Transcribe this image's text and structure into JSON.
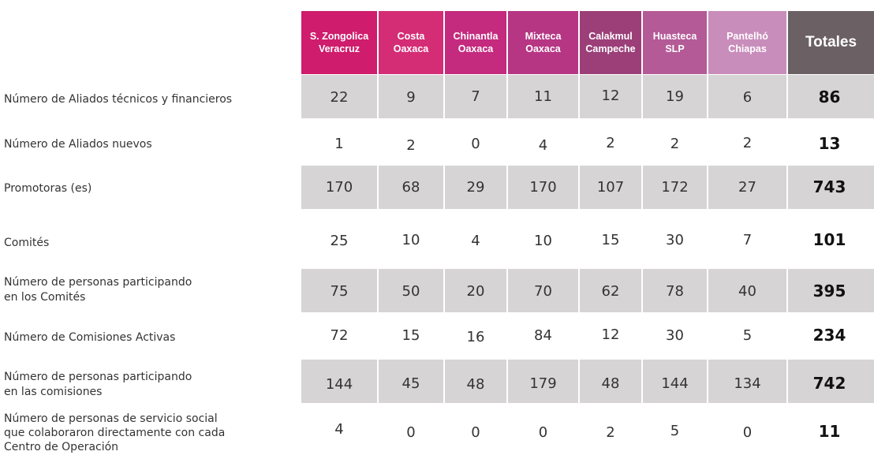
{
  "header": {
    "columns": [
      {
        "line1": "S. Zongolica",
        "line2": "Veracruz",
        "color": "#cf1c6c"
      },
      {
        "line1": "Costa",
        "line2": "Oaxaca",
        "color": "#d42d76"
      },
      {
        "line1": "Chinantla",
        "line2": "Oaxaca",
        "color": "#c42a7e"
      },
      {
        "line1": "Mixteca",
        "line2": "Oaxaca",
        "color": "#b63684"
      },
      {
        "line1": "Calakmul",
        "line2": "Campeche",
        "color": "#9c3f78"
      },
      {
        "line1": "Huasteca",
        "line2": "SLP",
        "color": "#b45a97"
      },
      {
        "line1": "Pantelhó",
        "line2": "Chiapas",
        "color": "#c98dbb"
      }
    ],
    "total_label": "Totales",
    "total_color": "#6b6164"
  },
  "band_color": "#d6d4d5",
  "rows": [
    {
      "label": [
        "Número de Aliados técnicos y  financieros"
      ],
      "values": [
        "22",
        "9",
        "7",
        "11",
        "12",
        "19",
        "6"
      ],
      "total": "86",
      "shaded": true
    },
    {
      "label": [
        "Número de Aliados nuevos"
      ],
      "values": [
        "1",
        "2",
        "0",
        "4",
        "2",
        "2",
        "2"
      ],
      "total": "13",
      "shaded": false
    },
    {
      "label": [
        "Promotoras (es)"
      ],
      "values": [
        "170",
        "68",
        "29",
        "170",
        "107",
        "172",
        "27"
      ],
      "total": "743",
      "shaded": true
    },
    {
      "label": [
        "Comités"
      ],
      "values": [
        "25",
        "10",
        "4",
        "10",
        "15",
        "30",
        "7"
      ],
      "total": "101",
      "shaded": false
    },
    {
      "label": [
        "Número de personas participando",
        "en los Comités"
      ],
      "values": [
        "75",
        "50",
        "20",
        "70",
        "62",
        "78",
        "40"
      ],
      "total": "395",
      "shaded": true
    },
    {
      "label": [
        "Número de Comisiones Activas"
      ],
      "values": [
        "72",
        "15",
        "16",
        "84",
        "12",
        "30",
        "5"
      ],
      "total": "234",
      "shaded": false
    },
    {
      "label": [
        "Número de personas participando",
        "en las comisiones"
      ],
      "values": [
        "144",
        "45",
        "48",
        "179",
        "48",
        "144",
        "134"
      ],
      "total": "742",
      "shaded": true
    },
    {
      "label": [
        "Número de personas de servicio social",
        "que colaboraron directamente con cada",
        "Centro de Operación"
      ],
      "values": [
        "4",
        "0",
        "0",
        "0",
        "2",
        "5",
        "0"
      ],
      "total": "11",
      "shaded": false
    }
  ]
}
